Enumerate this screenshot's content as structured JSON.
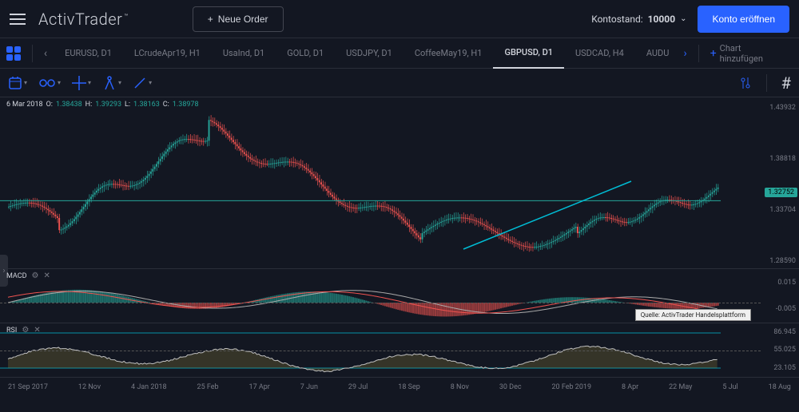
{
  "header": {
    "logo": "ActivTrader",
    "new_order": "Neue Order",
    "balance_label": "Kontostand:",
    "balance_value": "10000",
    "open_account": "Konto eröffnen"
  },
  "tabs": {
    "items": [
      {
        "label": "EURUSD, D1",
        "active": false
      },
      {
        "label": "LCrudeApr19, H1",
        "active": false
      },
      {
        "label": "UsaInd, D1",
        "active": false
      },
      {
        "label": "GOLD, D1",
        "active": false
      },
      {
        "label": "USDJPY, D1",
        "active": false
      },
      {
        "label": "CoffeeMay19, H1",
        "active": false
      },
      {
        "label": "GBPUSD, D1",
        "active": true
      },
      {
        "label": "USDCAD, H4",
        "active": false
      },
      {
        "label": "AUDU",
        "active": false
      }
    ],
    "add_chart": "Chart hinzufügen"
  },
  "ohlc": {
    "date": "6 Mar 2018",
    "o_label": "O:",
    "o": "1.38438",
    "h_label": "H:",
    "h": "1.39293",
    "l_label": "L:",
    "l": "1.38163",
    "c_label": "C:",
    "c": "1.38978"
  },
  "chart": {
    "type": "candlestick",
    "colors": {
      "up": "#26a69a",
      "down": "#ef5350",
      "bg": "#131722",
      "grid": "#2a2e39",
      "trendline": "#00bcd4",
      "horizontal_line": "#26a69a"
    },
    "y_ticks": [
      "1.43932",
      "1.38818",
      "1.33704",
      "1.28590"
    ],
    "current_price": "1.32752",
    "current_price_y": 118,
    "x_ticks": [
      "21 Sep 2017",
      "12 Nov",
      "4 Jan 2018",
      "25 Feb",
      "17 Apr",
      "7 Jun",
      "29 Jul",
      "18 Sep",
      "8 Nov",
      "30 Dec",
      "20 Feb 2019",
      "8 Apr",
      "22 May",
      "5 Jul",
      "18 Aug"
    ],
    "trendline_points": {
      "x1": 580,
      "y1": 190,
      "x2": 790,
      "y2": 105
    }
  },
  "macd": {
    "label": "MACD",
    "y_ticks": [
      "0.015",
      "-0.005"
    ],
    "tooltip": "Quelle: ActivTrader Handelsplattform",
    "colors": {
      "line1": "#787b86",
      "line2": "#ef5350",
      "hist_up": "#26a69a",
      "hist_down": "#ef5350"
    }
  },
  "rsi": {
    "label": "RSI",
    "y_ticks": [
      "86.945",
      "55.025",
      "23.105"
    ],
    "colors": {
      "line": "#d1d4dc",
      "band": "#00bcd4",
      "fill": "#9b8a3a"
    }
  }
}
